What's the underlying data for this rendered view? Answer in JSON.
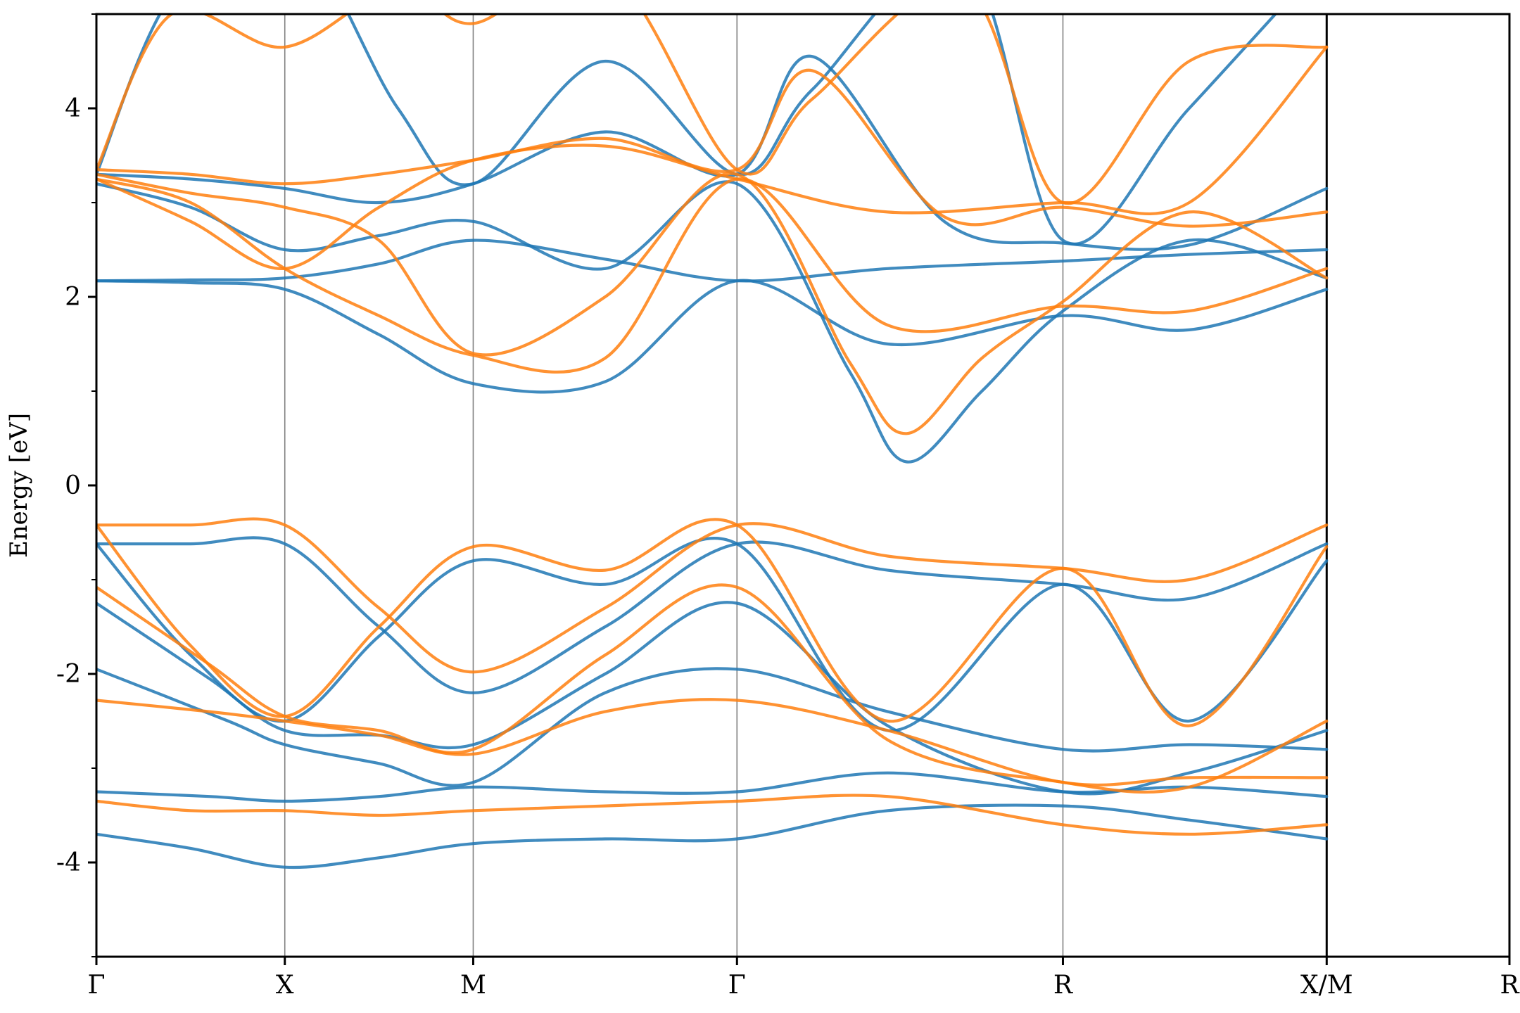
{
  "chart_data": {
    "type": "line",
    "title": "",
    "xlabel": "",
    "ylabel": "Energy [eV]",
    "ylim": [
      -5,
      5
    ],
    "xlim": [
      0,
      7.5
    ],
    "y_ticks": [
      -4,
      -2,
      0,
      2,
      4
    ],
    "y_tick_labels": [
      "-4",
      "-2",
      "0",
      "2",
      "4"
    ],
    "y_minor_ticks": [
      -5,
      -3,
      -1,
      1,
      3,
      5
    ],
    "k_points": [
      {
        "label": "Γ",
        "x": 0
      },
      {
        "label": "X",
        "x": 1
      },
      {
        "label": "M",
        "x": 2
      },
      {
        "label": "Γ",
        "x": 3.4
      },
      {
        "label": "R",
        "x": 5.13
      },
      {
        "label": "X/M",
        "x": 6.53
      },
      {
        "label": "R",
        "x": 7.5
      }
    ],
    "grid": "vertical lines at high-symmetry points",
    "legend": "none",
    "colors": {
      "series_1": "#1f77b4",
      "series_2": "#ff7f0e",
      "kline": "#808080",
      "axes": "#000000"
    },
    "series": [
      {
        "color": "#1f77b4",
        "bands": [
          {
            "x": [
              0,
              0.5,
              1,
              1.5,
              2,
              2.7,
              3.4,
              4.2,
              5.13,
              5.8,
              6.53
            ],
            "y": [
              -3.7,
              -3.85,
              -4.05,
              -3.95,
              -3.8,
              -3.75,
              -3.75,
              -3.45,
              -3.4,
              -3.55,
              -3.75
            ]
          },
          {
            "x": [
              0,
              0.6,
              1,
              1.5,
              2,
              2.7,
              3.4,
              4.2,
              5.13,
              5.8,
              6.53
            ],
            "y": [
              -3.25,
              -3.3,
              -3.35,
              -3.3,
              -3.2,
              -3.25,
              -3.25,
              -3.05,
              -3.25,
              -3.2,
              -3.3
            ]
          },
          {
            "x": [
              0,
              0.7,
              1,
              1.5,
              2,
              2.7,
              3.4,
              4.2,
              5.13,
              5.8,
              6.53
            ],
            "y": [
              -1.95,
              -2.5,
              -2.75,
              -2.95,
              -3.15,
              -2.2,
              -1.95,
              -2.4,
              -2.8,
              -2.75,
              -2.8
            ]
          },
          {
            "x": [
              0,
              0.6,
              1,
              1.5,
              2,
              2.7,
              3.4,
              4.2,
              5.13,
              5.8,
              6.53
            ],
            "y": [
              -1.25,
              -2.05,
              -2.6,
              -2.65,
              -2.75,
              -2.0,
              -1.25,
              -2.55,
              -3.25,
              -3.05,
              -2.6
            ]
          },
          {
            "x": [
              0,
              0.5,
              1,
              1.5,
              2,
              2.7,
              3.4,
              4.2,
              5.13,
              5.8,
              6.53
            ],
            "y": [
              -0.62,
              -0.62,
              -0.62,
              -1.5,
              -2.2,
              -1.5,
              -0.62,
              -0.9,
              -1.05,
              -1.2,
              -0.62
            ]
          },
          {
            "x": [
              0,
              0.5,
              1,
              1.5,
              2,
              2.7,
              3.4,
              4.2,
              5.13,
              5.8,
              6.53
            ],
            "y": [
              -0.62,
              -1.8,
              -2.5,
              -1.6,
              -0.8,
              -1.05,
              -0.62,
              -2.6,
              -1.05,
              -2.5,
              -0.8
            ]
          },
          {
            "x": [
              0,
              0.5,
              1,
              1.5,
              2,
              2.7,
              3.4,
              4.2,
              5.13,
              5.8,
              6.53
            ],
            "y": [
              2.17,
              2.18,
              2.2,
              2.35,
              2.6,
              2.4,
              2.17,
              2.3,
              2.38,
              2.45,
              2.5
            ]
          },
          {
            "x": [
              0,
              0.5,
              1,
              1.5,
              2,
              2.7,
              3.4,
              4.2,
              5.13,
              5.8,
              6.53
            ],
            "y": [
              2.17,
              2.15,
              2.08,
              1.6,
              1.08,
              1.1,
              2.17,
              1.5,
              1.8,
              1.65,
              2.08
            ]
          },
          {
            "x": [
              0,
              0.5,
              1,
              1.5,
              2,
              2.7,
              3.4,
              4.0,
              4.3,
              4.7,
              5.13,
              5.8,
              6.53
            ],
            "y": [
              3.2,
              2.95,
              2.5,
              2.65,
              2.8,
              2.3,
              3.2,
              1.2,
              0.25,
              1.0,
              1.85,
              2.6,
              2.2
            ]
          },
          {
            "x": [
              0,
              0.5,
              1,
              1.5,
              2,
              2.7,
              3.4,
              3.8,
              4.5,
              5.13,
              5.8,
              6.53
            ],
            "y": [
              3.3,
              3.25,
              3.15,
              3.0,
              3.2,
              3.75,
              3.3,
              4.55,
              2.8,
              2.57,
              2.55,
              3.15
            ]
          },
          {
            "x": [
              0,
              0.4,
              1,
              1.6,
              2,
              2.7,
              3.4,
              3.8,
              4.6,
              5.13,
              5.8,
              6.53
            ],
            "y": [
              3.3,
              5.2,
              6.0,
              4.0,
              3.2,
              4.5,
              3.3,
              4.2,
              5.6,
              2.6,
              4.0,
              5.6
            ]
          }
        ]
      },
      {
        "color": "#ff7f0e",
        "bands": [
          {
            "x": [
              0,
              0.5,
              1,
              1.5,
              2,
              2.7,
              3.4,
              4.2,
              5.13,
              5.8,
              6.53
            ],
            "y": [
              -3.35,
              -3.45,
              -3.45,
              -3.5,
              -3.45,
              -3.4,
              -3.35,
              -3.3,
              -3.6,
              -3.7,
              -3.6
            ]
          },
          {
            "x": [
              0,
              0.6,
              1,
              1.5,
              2,
              2.7,
              3.4,
              4.2,
              5.13,
              5.8,
              6.53
            ],
            "y": [
              -2.28,
              -2.4,
              -2.5,
              -2.65,
              -2.85,
              -2.4,
              -2.28,
              -2.6,
              -3.15,
              -3.1,
              -3.1
            ]
          },
          {
            "x": [
              0,
              0.6,
              1,
              1.5,
              2,
              2.7,
              3.4,
              4.2,
              5.13,
              5.8,
              6.53
            ],
            "y": [
              -1.08,
              -1.9,
              -2.45,
              -2.6,
              -2.8,
              -1.8,
              -1.08,
              -2.7,
              -3.15,
              -3.2,
              -2.5
            ]
          },
          {
            "x": [
              0,
              0.5,
              1,
              1.5,
              2,
              2.7,
              3.4,
              4.2,
              5.13,
              5.8,
              6.53
            ],
            "y": [
              -0.42,
              -0.42,
              -0.42,
              -1.3,
              -1.98,
              -1.3,
              -0.42,
              -0.75,
              -0.88,
              -1.0,
              -0.42
            ]
          },
          {
            "x": [
              0,
              0.5,
              1,
              1.5,
              2,
              2.7,
              3.4,
              4.2,
              5.13,
              5.8,
              6.53
            ],
            "y": [
              -0.42,
              -1.7,
              -2.45,
              -1.5,
              -0.65,
              -0.9,
              -0.42,
              -2.5,
              -0.88,
              -2.55,
              -0.65
            ]
          },
          {
            "x": [
              0,
              0.5,
              1,
              1.5,
              2,
              2.7,
              3.4,
              4.2,
              5.13,
              5.8,
              6.53
            ],
            "y": [
              3.25,
              2.8,
              2.3,
              2.95,
              3.45,
              3.6,
              3.25,
              2.9,
              3.0,
              3.0,
              4.65
            ]
          },
          {
            "x": [
              0,
              0.5,
              1,
              1.5,
              2,
              2.7,
              3.4,
              4.2,
              5.13,
              5.8,
              6.53
            ],
            "y": [
              3.25,
              3.0,
              2.3,
              1.8,
              1.38,
              1.35,
              3.25,
              1.7,
              1.9,
              1.85,
              2.3
            ]
          },
          {
            "x": [
              0,
              0.5,
              1,
              1.5,
              2,
              2.7,
              3.4,
              4.0,
              4.3,
              4.7,
              5.13,
              5.8,
              6.53
            ],
            "y": [
              3.3,
              3.1,
              2.95,
              2.6,
              1.4,
              2.0,
              3.3,
              1.3,
              0.55,
              1.35,
              1.95,
              2.9,
              2.2
            ]
          },
          {
            "x": [
              0,
              0.5,
              1,
              1.5,
              2,
              2.7,
              3.4,
              3.8,
              4.5,
              5.13,
              5.8,
              6.53
            ],
            "y": [
              3.35,
              3.3,
              3.2,
              3.3,
              3.45,
              3.68,
              3.35,
              4.4,
              2.85,
              2.95,
              2.75,
              2.9
            ]
          },
          {
            "x": [
              0,
              0.4,
              1,
              1.6,
              2,
              2.7,
              3.4,
              3.8,
              4.6,
              5.13,
              5.8,
              6.53
            ],
            "y": [
              3.35,
              5.0,
              4.65,
              5.3,
              4.9,
              5.5,
              3.35,
              4.1,
              5.3,
              3.0,
              4.5,
              4.65
            ]
          }
        ]
      }
    ]
  }
}
